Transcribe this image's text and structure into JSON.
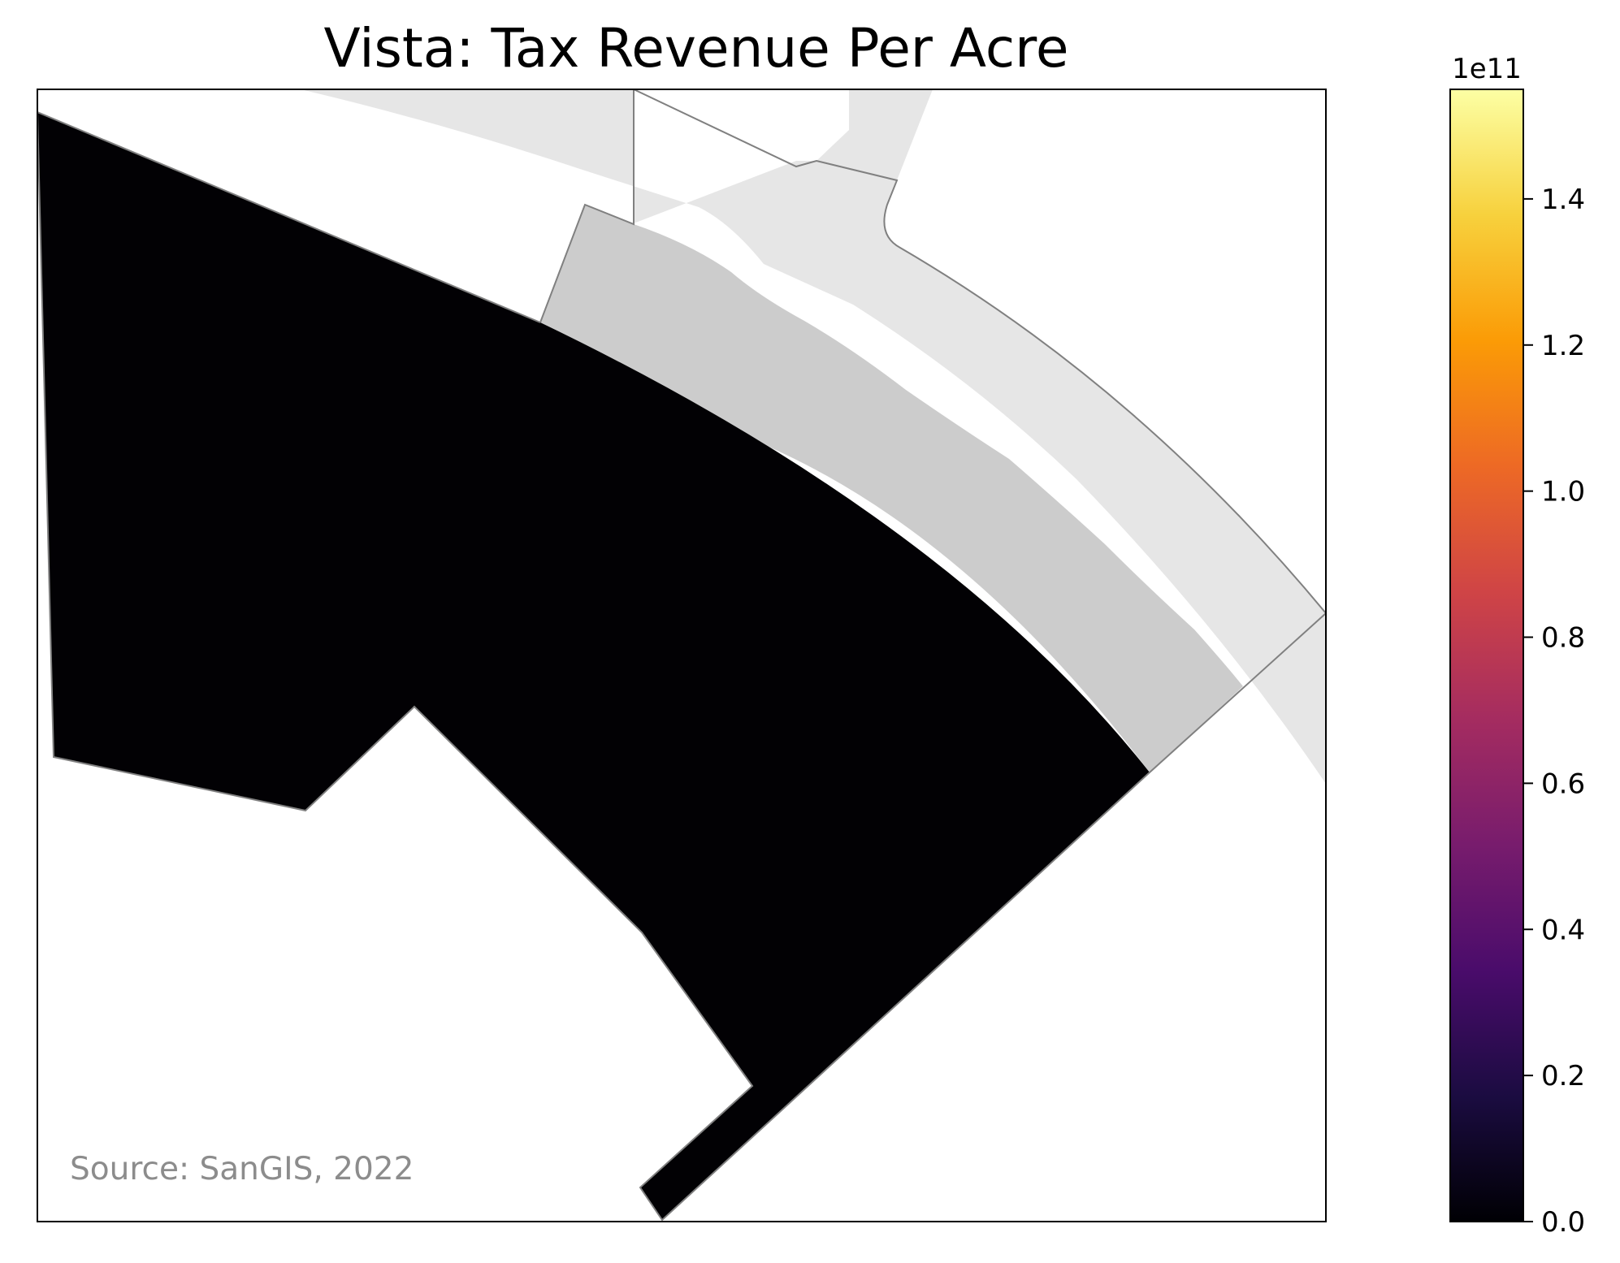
{
  "map": {
    "title": "Vista: Tax Revenue Per Acre",
    "source": "Source: SanGIS, 2022",
    "source_color": "#8c8c8c",
    "frame_color": "#000000",
    "boundary_color": "#808080",
    "regions": [
      {
        "name": "road-corridor",
        "fill": "#e6e6e6",
        "value": null
      },
      {
        "name": "parcel-no-data",
        "fill": "#cccccc",
        "value": null
      },
      {
        "name": "parcel-main",
        "fill": "#020104",
        "value": 0
      }
    ]
  },
  "colorbar": {
    "colormap": "inferno",
    "exponent_label": "1e11",
    "min": 0,
    "max": 1.55,
    "ticks": [
      {
        "value": 0.0,
        "label": "0.0"
      },
      {
        "value": 0.2,
        "label": "0.2"
      },
      {
        "value": 0.4,
        "label": "0.4"
      },
      {
        "value": 0.6,
        "label": "0.6"
      },
      {
        "value": 0.8,
        "label": "0.8"
      },
      {
        "value": 1.0,
        "label": "1.0"
      },
      {
        "value": 1.2,
        "label": "1.2"
      },
      {
        "value": 1.4,
        "label": "1.4"
      }
    ],
    "stops": [
      "#000004",
      "#1b0c41",
      "#4a0c6b",
      "#781c6d",
      "#a52c60",
      "#cf4446",
      "#ed6925",
      "#fb9b06",
      "#f7d13d",
      "#fcffa4"
    ]
  }
}
